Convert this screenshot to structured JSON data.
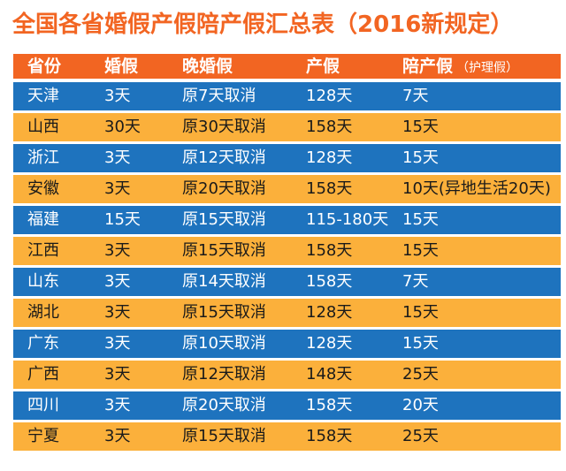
{
  "title": "全国各省婚假产假陪产假汇总表（2016新规定）",
  "table": {
    "headers": [
      "省份",
      "婚假",
      "晚婚假",
      "产假",
      "陪产假"
    ],
    "header_note": "（护理假）",
    "rows": [
      {
        "province": "天津",
        "marriage": "3天",
        "late_marriage": "原7天取消",
        "maternity": "128天",
        "paternity": "7天"
      },
      {
        "province": "山西",
        "marriage": "30天",
        "late_marriage": "原30天取消",
        "maternity": "158天",
        "paternity": "15天"
      },
      {
        "province": "浙江",
        "marriage": "3天",
        "late_marriage": "原12天取消",
        "maternity": "128天",
        "paternity": "15天"
      },
      {
        "province": "安徽",
        "marriage": "3天",
        "late_marriage": "原20天取消",
        "maternity": "158天",
        "paternity": "10天(异地生活20天)"
      },
      {
        "province": "福建",
        "marriage": "15天",
        "late_marriage": "原15天取消",
        "maternity": "115-180天",
        "paternity": "15天"
      },
      {
        "province": "江西",
        "marriage": "3天",
        "late_marriage": "原15天取消",
        "maternity": "158天",
        "paternity": "15天"
      },
      {
        "province": "山东",
        "marriage": "3天",
        "late_marriage": "原14天取消",
        "maternity": "158天",
        "paternity": "7天"
      },
      {
        "province": "湖北",
        "marriage": "3天",
        "late_marriage": "原15天取消",
        "maternity": "128天",
        "paternity": "15天"
      },
      {
        "province": "广东",
        "marriage": "3天",
        "late_marriage": "原10天取消",
        "maternity": "128天",
        "paternity": "15天"
      },
      {
        "province": "广西",
        "marriage": "3天",
        "late_marriage": "原12天取消",
        "maternity": "148天",
        "paternity": "25天"
      },
      {
        "province": "四川",
        "marriage": "3天",
        "late_marriage": "原20天取消",
        "maternity": "158天",
        "paternity": "20天"
      },
      {
        "province": "宁夏",
        "marriage": "3天",
        "late_marriage": "原15天取消",
        "maternity": "158天",
        "paternity": "25天"
      }
    ]
  },
  "colors": {
    "title": "#f26522",
    "header_bg": "#f26522",
    "row_blue": "#1e73be",
    "row_orange": "#fbb03b"
  }
}
